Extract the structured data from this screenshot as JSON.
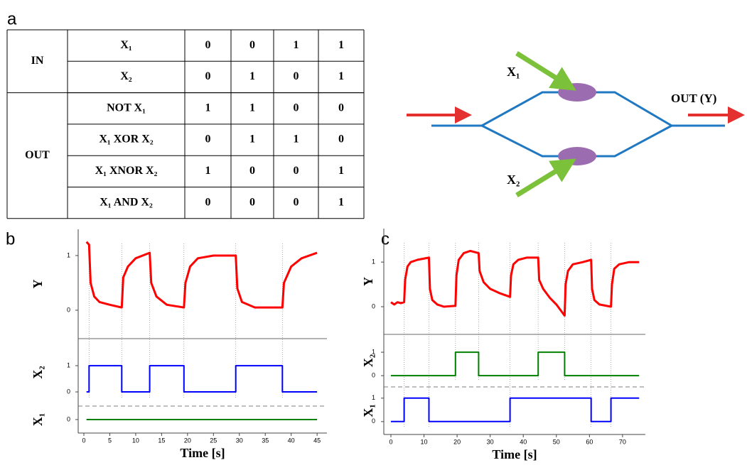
{
  "panel_labels": [
    "a",
    "b",
    "c"
  ],
  "table": {
    "groups": [
      {
        "label": "IN",
        "rows": [
          {
            "label": "X₁",
            "cells": [
              0,
              0,
              1,
              1
            ]
          },
          {
            "label": "X₂",
            "cells": [
              0,
              1,
              0,
              1
            ]
          }
        ]
      },
      {
        "label": "OUT",
        "rows": [
          {
            "label": "NOT X₁",
            "cells": [
              1,
              1,
              0,
              0
            ]
          },
          {
            "label": "X₁ XOR X₂",
            "cells": [
              0,
              1,
              1,
              0
            ]
          },
          {
            "label": "X₁ XNOR X₂",
            "cells": [
              1,
              0,
              0,
              1
            ]
          },
          {
            "label": "X₁ AND X₂",
            "cells": [
              0,
              0,
              0,
              1
            ]
          }
        ]
      }
    ]
  },
  "diagram": {
    "input_top": "X₁",
    "input_bottom": "X₂",
    "output": "OUT (Y)"
  },
  "chart_data": [
    {
      "type": "line",
      "xlabel": "Time [s]",
      "xlim": [
        -1.1,
        46.9
      ],
      "xticks": [
        0,
        5,
        10,
        15,
        20,
        25,
        30,
        35,
        40,
        45
      ],
      "subplots": [
        {
          "ylabel": "Y",
          "ylim": [
            -0.52,
            1.48
          ],
          "yticks": [
            0,
            1
          ],
          "x": [
            0.5,
            1,
            1.3,
            2,
            3,
            5,
            7.3,
            7.6,
            8.5,
            10,
            12.7,
            13,
            14,
            16,
            19.3,
            19.6,
            20.5,
            22,
            25,
            29.3,
            29.6,
            30.5,
            33,
            38.3,
            38.6,
            40,
            42,
            45
          ],
          "series": [
            {
              "color": "#ff0000",
              "values": [
                1.25,
                1.2,
                0.5,
                0.25,
                0.15,
                0.1,
                0.05,
                0.6,
                0.8,
                0.95,
                1.05,
                0.5,
                0.25,
                0.1,
                0.05,
                0.5,
                0.8,
                0.95,
                1.0,
                1.0,
                0.4,
                0.15,
                0.05,
                0.05,
                0.5,
                0.8,
                0.95,
                1.05
              ]
            }
          ]
        },
        {
          "ylabel": "X₂",
          "ylim": [
            -0.54,
            2.03
          ],
          "yticks": [
            0,
            1
          ],
          "x": [
            0.5,
            1,
            1,
            7.3,
            7.3,
            12.7,
            12.7,
            19.3,
            19.3,
            29.3,
            29.3,
            38.3,
            38.3,
            45
          ],
          "series": [
            {
              "color": "#0000ff",
              "values": [
                0,
                0,
                1,
                1,
                0,
                0,
                1,
                1,
                0,
                0,
                1,
                1,
                0,
                0
              ]
            }
          ]
        },
        {
          "ylabel": "X₁",
          "ylim": [
            -0.5,
            0.5
          ],
          "yticks": [
            0
          ],
          "x": [
            0.5,
            45
          ],
          "series": [
            {
              "color": "#008000",
              "values": [
                0,
                0
              ]
            }
          ]
        }
      ]
    },
    {
      "type": "line",
      "xlabel": "Time [s]",
      "xlim": [
        -2.15,
        76.9
      ],
      "xticks": [
        0,
        10,
        20,
        30,
        40,
        50,
        60,
        70
      ],
      "subplots": [
        {
          "ylabel": "Y",
          "ylim": [
            -0.62,
            1.75
          ],
          "yticks": [
            0,
            1
          ],
          "x": [
            0,
            1,
            2,
            3,
            4,
            4.3,
            5,
            6,
            8,
            11.5,
            11.8,
            12.5,
            14,
            16,
            19.5,
            19.8,
            20.5,
            22,
            24,
            26.5,
            26.8,
            28,
            30,
            33,
            36,
            36.3,
            37,
            38.5,
            41,
            44.5,
            44.8,
            46,
            48,
            50,
            52.5,
            52.8,
            53.5,
            55,
            58,
            60.5,
            60.8,
            61.5,
            63,
            66.5,
            66.8,
            67.5,
            69,
            72,
            75
          ],
          "series": [
            {
              "color": "#ff0000",
              "values": [
                0.1,
                0.05,
                0.1,
                0.08,
                0.1,
                0.6,
                0.9,
                1.0,
                1.05,
                1.1,
                0.4,
                0.15,
                0.05,
                0.0,
                0.02,
                0.7,
                1.05,
                1.2,
                1.25,
                1.2,
                0.8,
                0.55,
                0.4,
                0.3,
                0.22,
                0.7,
                0.95,
                1.05,
                1.1,
                1.1,
                0.6,
                0.4,
                0.2,
                0.05,
                -0.2,
                0.5,
                0.8,
                0.95,
                1.0,
                1.05,
                0.4,
                0.15,
                0.05,
                0.0,
                0.5,
                0.85,
                0.95,
                1.0,
                1.0
              ]
            }
          ]
        },
        {
          "ylabel": "X₂",
          "ylim": [
            -0.48,
            1.76
          ],
          "yticks": [
            0,
            1
          ],
          "x": [
            0,
            19.5,
            19.5,
            26.5,
            26.5,
            44.5,
            44.5,
            52.5,
            52.5,
            75
          ],
          "series": [
            {
              "color": "#008000",
              "values": [
                0,
                0,
                1,
                1,
                0,
                0,
                1,
                1,
                0,
                0
              ]
            }
          ]
        },
        {
          "ylabel": "X₁",
          "ylim": [
            -0.55,
            1.48
          ],
          "yticks": [
            0,
            1
          ],
          "x": [
            0,
            4,
            4,
            11.5,
            11.5,
            36,
            36,
            60.5,
            60.5,
            66.5,
            66.5,
            75
          ],
          "series": [
            {
              "color": "#0000ff",
              "values": [
                0,
                0,
                1,
                1,
                0,
                0,
                1,
                1,
                0,
                0,
                1,
                1
              ]
            }
          ]
        }
      ]
    }
  ]
}
